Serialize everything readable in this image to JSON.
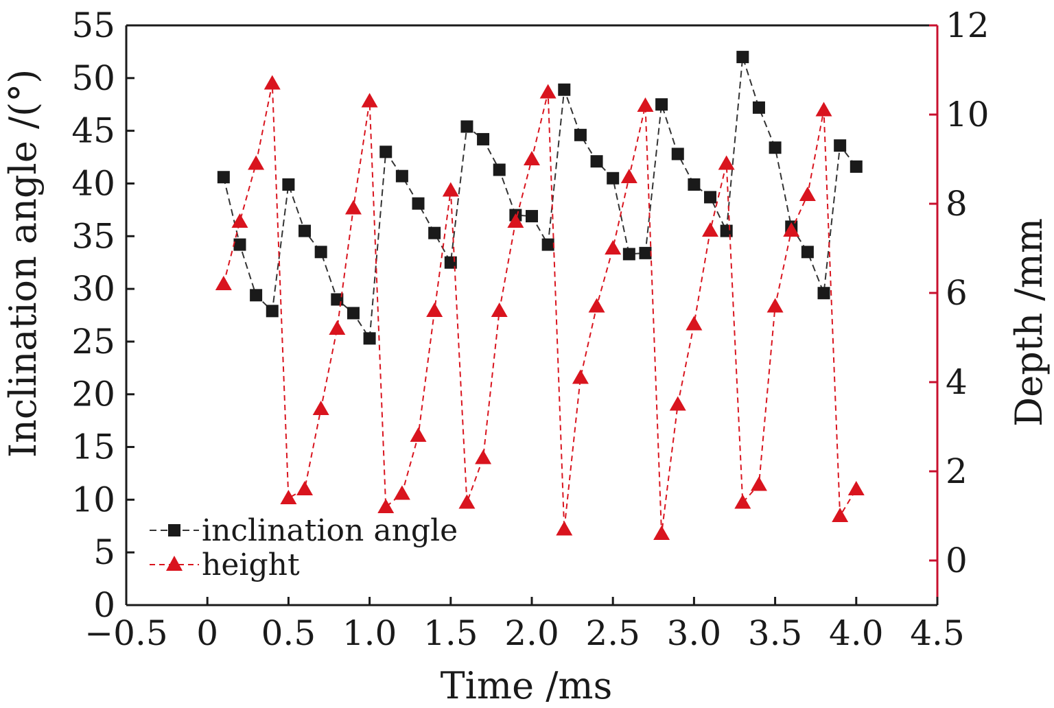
{
  "chart_data": {
    "type": "line",
    "xlabel": "Time /ms",
    "ylabel_left": "Inclination angle /(°)",
    "ylabel_right": "Depth /mm",
    "xlim": [
      -0.5,
      4.5
    ],
    "ylim_left": [
      0,
      55
    ],
    "ylim_right": [
      -1,
      12
    ],
    "x_ticks": [
      "-0.5",
      "0",
      "0.5",
      "1.0",
      "1.5",
      "2.0",
      "2.5",
      "3.0",
      "3.5",
      "4.0",
      "4.5"
    ],
    "y_left_ticks": [
      "0",
      "5",
      "10",
      "15",
      "20",
      "25",
      "30",
      "35",
      "40",
      "45",
      "50",
      "55"
    ],
    "y_right_ticks": [
      "0",
      "2",
      "4",
      "6",
      "8",
      "10",
      "12"
    ],
    "grid": false,
    "legend_position": "bottom-left",
    "colors": {
      "left_axis": "#1a1a1a",
      "right_axis": "#c8102e",
      "angle_series": "#1a1a1a",
      "height_series": "#d9141e"
    },
    "x": [
      0.1,
      0.2,
      0.3,
      0.4,
      0.5,
      0.6,
      0.7,
      0.8,
      0.9,
      1.0,
      1.1,
      1.2,
      1.3,
      1.4,
      1.5,
      1.6,
      1.7,
      1.8,
      1.9,
      2.0,
      2.1,
      2.2,
      2.3,
      2.4,
      2.5,
      2.6,
      2.7,
      2.8,
      2.9,
      3.0,
      3.1,
      3.2,
      3.3,
      3.4,
      3.5,
      3.6,
      3.7,
      3.8,
      3.9,
      4.0
    ],
    "series": [
      {
        "name": "inclination angle",
        "axis": "left",
        "marker": "square",
        "values": [
          40.6,
          34.2,
          29.4,
          27.9,
          39.9,
          35.5,
          33.5,
          29.0,
          27.7,
          25.3,
          43.0,
          40.7,
          38.1,
          35.3,
          32.5,
          45.4,
          44.2,
          41.3,
          37.0,
          36.9,
          34.2,
          48.9,
          44.6,
          42.1,
          40.5,
          33.3,
          33.4,
          47.5,
          42.8,
          39.9,
          38.7,
          35.5,
          52.0,
          47.2,
          43.4,
          35.9,
          33.5,
          29.6,
          43.6,
          41.6
        ]
      },
      {
        "name": "height",
        "axis": "right",
        "marker": "triangle",
        "values": [
          6.2,
          7.6,
          8.9,
          10.7,
          1.4,
          1.6,
          3.4,
          5.2,
          7.9,
          10.3,
          1.2,
          1.5,
          2.8,
          5.6,
          8.3,
          1.3,
          2.3,
          5.6,
          7.6,
          9.0,
          10.5,
          0.7,
          4.1,
          5.7,
          7.0,
          8.6,
          10.2,
          0.6,
          3.5,
          5.3,
          7.4,
          8.9,
          1.3,
          1.7,
          5.7,
          7.4,
          8.2,
          10.1,
          1.0,
          1.6
        ]
      }
    ]
  }
}
